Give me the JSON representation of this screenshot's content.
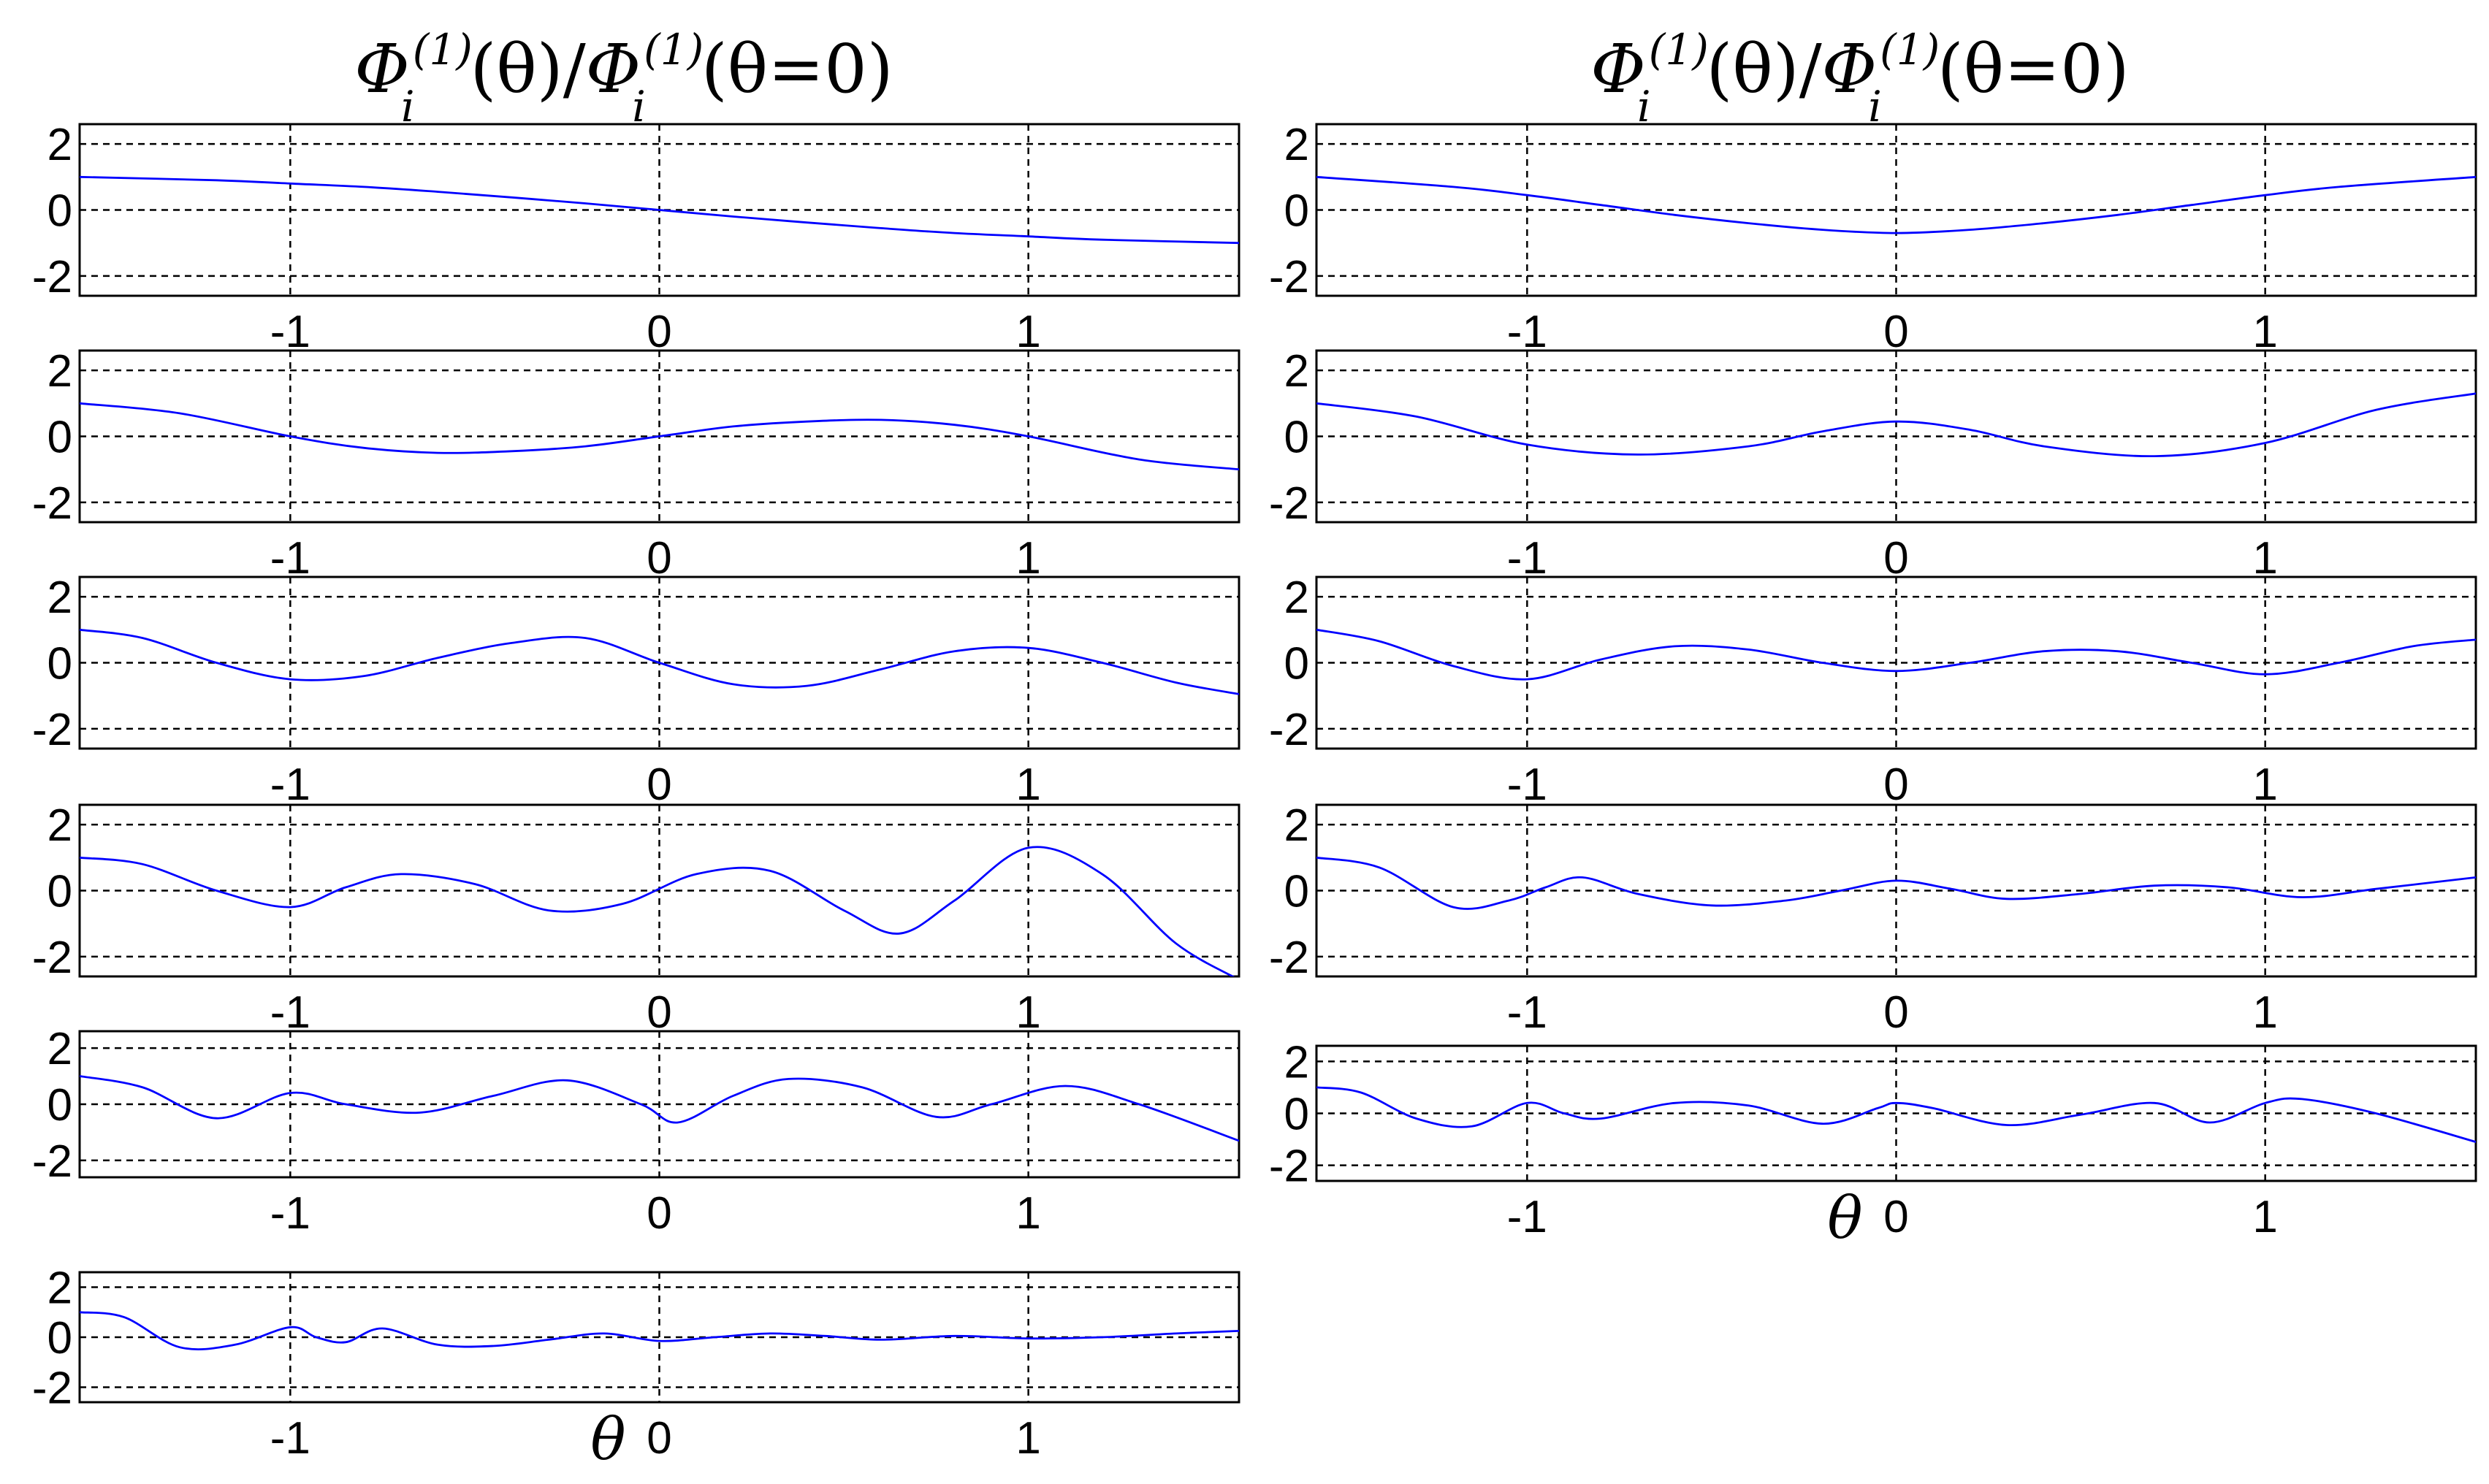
{
  "columns": [
    {
      "title": {
        "symbol": "Φ",
        "superscript": "(1)",
        "subscript": "i",
        "arg": "(θ)/",
        "symbol2": "Φ",
        "superscript2": "(1)",
        "subscript2": "i",
        "arg2": "(θ=0)"
      }
    },
    {
      "title": {
        "symbol": "Φ",
        "superscript": "(1)",
        "subscript": "i",
        "arg": "(θ)/",
        "symbol2": "Φ",
        "superscript2": "(1)",
        "subscript2": "i",
        "arg2": "(θ=0)"
      }
    }
  ],
  "xlabel": "θ",
  "colors": {
    "line": "#0000ff",
    "grid": "#000000"
  },
  "chart_data": [
    {
      "type": "line",
      "column": 0,
      "row": 0,
      "xlim": [
        -1.5708,
        1.5708
      ],
      "ylim": [
        -2.6,
        2.6
      ],
      "xticks": [
        "-1",
        "0",
        "1"
      ],
      "yticks": [
        "2",
        "0",
        "-2"
      ],
      "grid": true,
      "x": [
        -1.5708,
        -1.2,
        -1.0,
        -0.8,
        -0.6,
        -0.4,
        -0.2,
        0.0,
        0.2,
        0.4,
        0.6,
        0.8,
        1.0,
        1.2,
        1.5708
      ],
      "y": [
        1.0,
        0.9,
        0.8,
        0.7,
        0.55,
        0.38,
        0.2,
        0.0,
        -0.2,
        -0.38,
        -0.55,
        -0.7,
        -0.8,
        -0.9,
        -1.0
      ]
    },
    {
      "type": "line",
      "column": 0,
      "row": 1,
      "xlim": [
        -1.5708,
        1.5708
      ],
      "ylim": [
        -2.6,
        2.6
      ],
      "xticks": [
        "-1",
        "0",
        "1"
      ],
      "yticks": [
        "2",
        "0",
        "-2"
      ],
      "grid": true,
      "x": [
        -1.5708,
        -1.3,
        -1.0,
        -0.8,
        -0.6,
        -0.4,
        -0.2,
        0.0,
        0.2,
        0.4,
        0.6,
        0.8,
        1.0,
        1.3,
        1.5708
      ],
      "y": [
        1.0,
        0.7,
        0.0,
        -0.35,
        -0.5,
        -0.45,
        -0.3,
        0.0,
        0.3,
        0.45,
        0.5,
        0.35,
        0.0,
        -0.7,
        -1.0
      ]
    },
    {
      "type": "line",
      "column": 0,
      "row": 2,
      "xlim": [
        -1.5708,
        1.5708
      ],
      "ylim": [
        -2.6,
        2.6
      ],
      "xticks": [
        "-1",
        "0",
        "1"
      ],
      "yticks": [
        "2",
        "0",
        "-2"
      ],
      "grid": true,
      "x": [
        -1.5708,
        -1.4,
        -1.2,
        -1.0,
        -0.8,
        -0.6,
        -0.4,
        -0.2,
        0.0,
        0.2,
        0.4,
        0.6,
        0.8,
        1.0,
        1.2,
        1.4,
        1.5708
      ],
      "y": [
        1.0,
        0.75,
        0.0,
        -0.5,
        -0.4,
        0.15,
        0.6,
        0.75,
        0.0,
        -0.65,
        -0.7,
        -0.2,
        0.35,
        0.45,
        0.0,
        -0.6,
        -0.95
      ]
    },
    {
      "type": "line",
      "column": 0,
      "row": 3,
      "xlim": [
        -1.5708,
        1.5708
      ],
      "ylim": [
        -2.6,
        2.6
      ],
      "xticks": [
        "-1",
        "0",
        "1"
      ],
      "yticks": [
        "2",
        "0",
        "-2"
      ],
      "grid": true,
      "x": [
        -1.5708,
        -1.4,
        -1.2,
        -1.0,
        -0.85,
        -0.7,
        -0.5,
        -0.3,
        -0.1,
        0.1,
        0.3,
        0.5,
        0.65,
        0.8,
        1.0,
        1.2,
        1.4,
        1.5708
      ],
      "y": [
        1.0,
        0.8,
        0.0,
        -0.5,
        0.1,
        0.5,
        0.2,
        -0.6,
        -0.4,
        0.5,
        0.6,
        -0.6,
        -1.3,
        -0.3,
        1.3,
        0.5,
        -1.6,
        -2.7
      ]
    },
    {
      "type": "line",
      "column": 0,
      "row": 4,
      "xlim": [
        -1.5708,
        1.5708
      ],
      "ylim": [
        -2.6,
        2.6
      ],
      "xticks": [
        "-1",
        "0",
        "1"
      ],
      "yticks": [
        "2",
        "0",
        "-2"
      ],
      "grid": true,
      "x": [
        -1.5708,
        -1.4,
        -1.2,
        -1.0,
        -0.85,
        -0.65,
        -0.45,
        -0.25,
        -0.05,
        0.05,
        0.2,
        0.35,
        0.55,
        0.75,
        0.9,
        1.1,
        1.3,
        1.5708
      ],
      "y": [
        1.0,
        0.6,
        -0.5,
        0.4,
        0.0,
        -0.3,
        0.3,
        0.85,
        0.0,
        -0.65,
        0.3,
        0.9,
        0.6,
        -0.45,
        0.0,
        0.65,
        0.0,
        -1.3
      ]
    },
    {
      "type": "line",
      "column": 0,
      "row": 5,
      "xlim": [
        -1.5708,
        1.5708
      ],
      "ylim": [
        -2.6,
        2.6
      ],
      "xticks": [
        "-1",
        "0",
        "1"
      ],
      "yticks": [
        "2",
        "0",
        "-2"
      ],
      "grid": true,
      "x": [
        -1.5708,
        -1.45,
        -1.3,
        -1.15,
        -1.0,
        -0.93,
        -0.85,
        -0.75,
        -0.6,
        -0.45,
        -0.3,
        -0.15,
        0.0,
        0.15,
        0.3,
        0.45,
        0.6,
        0.8,
        1.0,
        1.2,
        1.4,
        1.5708
      ],
      "y": [
        1.0,
        0.8,
        -0.4,
        -0.3,
        0.4,
        0.0,
        -0.2,
        0.35,
        -0.3,
        -0.35,
        -0.1,
        0.15,
        -0.15,
        0.0,
        0.15,
        0.05,
        -0.1,
        0.05,
        -0.05,
        0.0,
        0.15,
        0.25
      ]
    },
    {
      "type": "line",
      "column": 1,
      "row": 0,
      "xlim": [
        -1.5708,
        1.5708
      ],
      "ylim": [
        -2.6,
        2.6
      ],
      "xticks": [
        "-1",
        "0",
        "1"
      ],
      "yticks": [
        "2",
        "0",
        "-2"
      ],
      "grid": true,
      "x": [
        -1.5708,
        -1.2,
        -1.0,
        -0.8,
        -0.6,
        -0.4,
        -0.2,
        0.0,
        0.2,
        0.4,
        0.6,
        0.8,
        1.0,
        1.2,
        1.5708
      ],
      "y": [
        1.0,
        0.7,
        0.45,
        0.15,
        -0.15,
        -0.4,
        -0.6,
        -0.7,
        -0.6,
        -0.4,
        -0.15,
        0.15,
        0.45,
        0.7,
        1.0
      ]
    },
    {
      "type": "line",
      "column": 1,
      "row": 1,
      "xlim": [
        -1.5708,
        1.5708
      ],
      "ylim": [
        -2.6,
        2.6
      ],
      "xticks": [
        "-1",
        "0",
        "1"
      ],
      "yticks": [
        "2",
        "0",
        "-2"
      ],
      "grid": true,
      "x": [
        -1.5708,
        -1.3,
        -1.0,
        -0.7,
        -0.4,
        -0.2,
        0.0,
        0.2,
        0.4,
        0.7,
        1.0,
        1.3,
        1.5708
      ],
      "y": [
        1.0,
        0.6,
        -0.25,
        -0.55,
        -0.3,
        0.15,
        0.45,
        0.2,
        -0.3,
        -0.6,
        -0.2,
        0.8,
        1.3
      ]
    },
    {
      "type": "line",
      "column": 1,
      "row": 2,
      "xlim": [
        -1.5708,
        1.5708
      ],
      "ylim": [
        -2.6,
        2.6
      ],
      "xticks": [
        "-1",
        "0",
        "1"
      ],
      "yticks": [
        "2",
        "0",
        "-2"
      ],
      "grid": true,
      "x": [
        -1.5708,
        -1.4,
        -1.2,
        -1.0,
        -0.8,
        -0.6,
        -0.4,
        -0.2,
        0.0,
        0.2,
        0.4,
        0.6,
        0.8,
        1.0,
        1.2,
        1.4,
        1.5708
      ],
      "y": [
        1.0,
        0.65,
        -0.1,
        -0.5,
        0.1,
        0.5,
        0.4,
        0.0,
        -0.25,
        0.0,
        0.35,
        0.35,
        0.0,
        -0.35,
        0.0,
        0.5,
        0.7
      ]
    },
    {
      "type": "line",
      "column": 1,
      "row": 3,
      "xlim": [
        -1.5708,
        1.5708
      ],
      "ylim": [
        -2.6,
        2.6
      ],
      "xticks": [
        "-1",
        "0",
        "1"
      ],
      "yticks": [
        "2",
        "0",
        "-2"
      ],
      "grid": true,
      "x": [
        -1.5708,
        -1.4,
        -1.2,
        -1.05,
        -0.95,
        -0.85,
        -0.7,
        -0.5,
        -0.3,
        -0.15,
        0.0,
        0.15,
        0.3,
        0.5,
        0.7,
        0.9,
        1.1,
        1.3,
        1.5708
      ],
      "y": [
        1.0,
        0.7,
        -0.5,
        -0.3,
        0.1,
        0.4,
        -0.1,
        -0.45,
        -0.3,
        0.0,
        0.3,
        0.05,
        -0.25,
        -0.1,
        0.15,
        0.1,
        -0.2,
        0.05,
        0.4
      ]
    },
    {
      "type": "line",
      "column": 1,
      "row": 4,
      "xlim": [
        -1.5708,
        1.5708
      ],
      "ylim": [
        -2.6,
        2.6
      ],
      "xticks": [
        "-1",
        "0",
        "1"
      ],
      "yticks": [
        "2",
        "0",
        "-2"
      ],
      "grid": true,
      "x": [
        -1.5708,
        -1.45,
        -1.3,
        -1.15,
        -1.0,
        -0.9,
        -0.8,
        -0.6,
        -0.4,
        -0.2,
        -0.05,
        0.0,
        0.1,
        0.3,
        0.5,
        0.7,
        0.85,
        1.0,
        1.1,
        1.3,
        1.5708
      ],
      "y": [
        1.0,
        0.8,
        -0.2,
        -0.5,
        0.4,
        0.0,
        -0.2,
        0.4,
        0.3,
        -0.4,
        0.2,
        0.4,
        0.2,
        -0.45,
        -0.05,
        0.4,
        -0.35,
        0.4,
        0.55,
        0.0,
        -1.1
      ]
    }
  ]
}
